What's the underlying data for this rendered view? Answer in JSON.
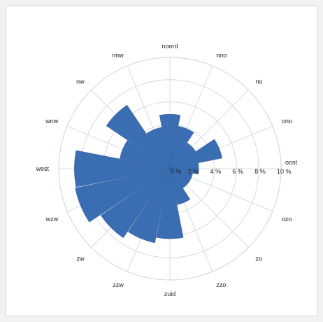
{
  "chart_data": {
    "type": "polar-bar",
    "title": "",
    "directions": [
      "noord",
      "nno",
      "no",
      "ono",
      "oost",
      "ozo",
      "zo",
      "zzo",
      "zuid",
      "zzw",
      "zw",
      "wzw",
      "west",
      "wnw",
      "nw",
      "nnw"
    ],
    "values": [
      4.9,
      3.9,
      2.8,
      4.8,
      2.6,
      2.1,
      2.1,
      3.3,
      6.3,
      6.8,
      7.5,
      8.7,
      8.6,
      4.6,
      6.9,
      3.8
    ],
    "rlim": [
      0,
      10
    ],
    "rticks": [
      "0 %",
      "2 %",
      "4 %",
      "6 %",
      "8 %",
      "10 %"
    ],
    "bar_color": "#3b6db3",
    "grid": true
  }
}
